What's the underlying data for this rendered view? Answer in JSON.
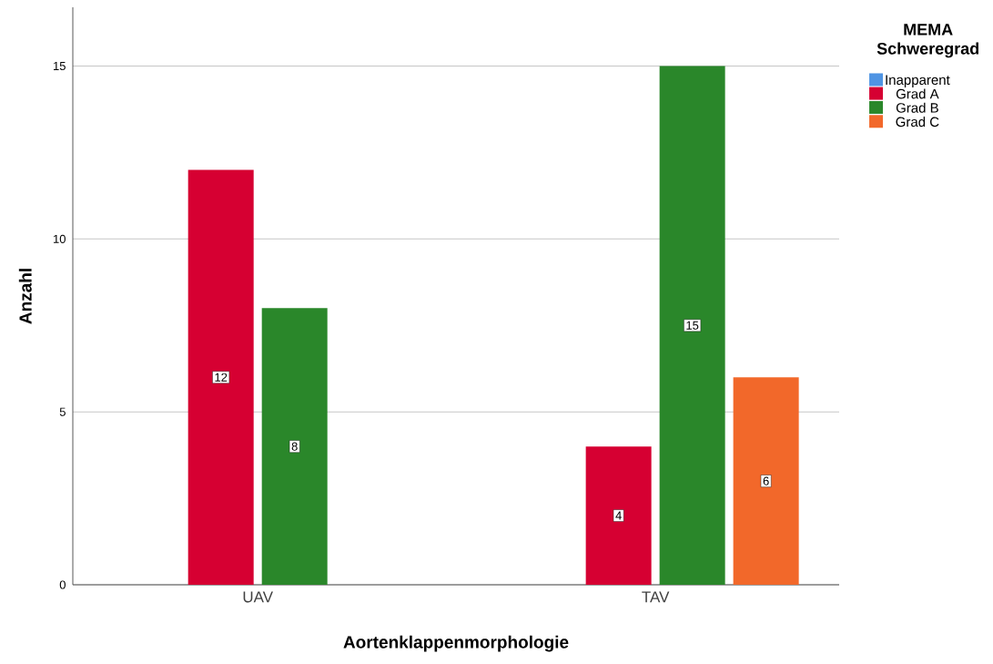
{
  "chart_data": {
    "type": "bar",
    "xlabel": "Aortenklappenmorphologie",
    "ylabel": "Anzahl",
    "legend_title": "MEMA Schweregrad",
    "categories": [
      "UAV",
      "TAV"
    ],
    "series": [
      {
        "name": "Inapparent",
        "color": "#4f94e3",
        "values": [
          null,
          null
        ]
      },
      {
        "name": "Grad A",
        "color": "#d60032",
        "values": [
          12,
          4
        ]
      },
      {
        "name": "Grad B",
        "color": "#2a872a",
        "values": [
          8,
          15
        ]
      },
      {
        "name": "Grad C",
        "color": "#f2682a",
        "values": [
          null,
          6
        ]
      }
    ],
    "ylim": [
      0,
      16.7
    ],
    "yticks": [
      0,
      5,
      10,
      15
    ],
    "grid": "y",
    "legend": "right",
    "data_labels": true
  }
}
